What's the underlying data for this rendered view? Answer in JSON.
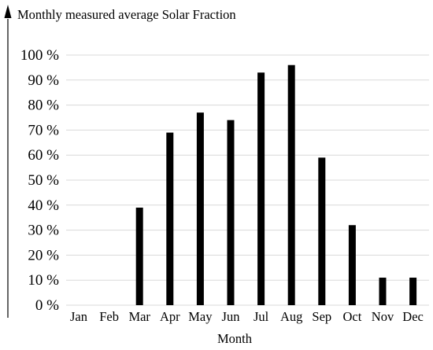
{
  "chart_data": {
    "type": "bar",
    "ylabel": "Monthly measured average Solar Fraction",
    "xlabel": "Month",
    "categories": [
      "Jan",
      "Feb",
      "Mar",
      "Apr",
      "May",
      "Jun",
      "Jul",
      "Aug",
      "Sep",
      "Oct",
      "Nov",
      "Dec"
    ],
    "values": [
      0,
      0,
      39,
      69,
      77,
      74,
      93,
      96,
      59,
      32,
      11,
      11
    ],
    "unit": "%",
    "ylim": [
      0,
      100
    ],
    "yticks": [
      0,
      10,
      20,
      30,
      40,
      50,
      60,
      70,
      80,
      90,
      100
    ],
    "ytick_labels": [
      "0 %",
      "10 %",
      "20 %",
      "30 %",
      "40 %",
      "50 %",
      "60 %",
      "70 %",
      "80 %",
      "90 %",
      "100 %"
    ],
    "grid": true,
    "legend": "none",
    "colors": {
      "bar": "#000000",
      "grid": "#d9d9d9",
      "axis": "#000000"
    }
  }
}
